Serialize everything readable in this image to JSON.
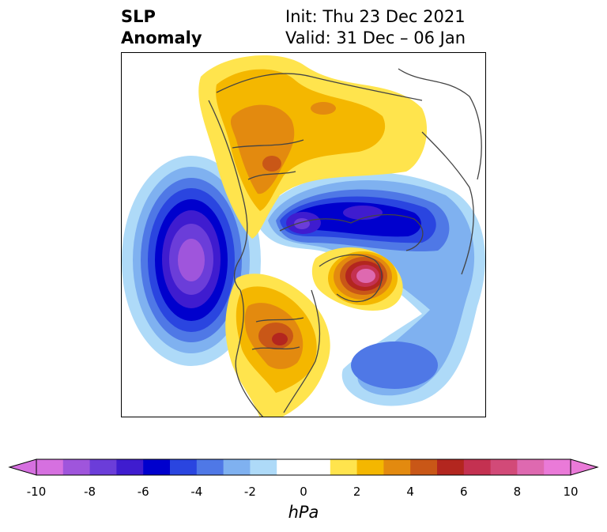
{
  "header": {
    "title_line1": "SLP",
    "title_line2": "Anomaly",
    "init_text": "Init: Thu 23 Dec 2021",
    "valid_text": "Valid: 31 Dec – 06 Jan"
  },
  "colorbar": {
    "unit_label": "hPa",
    "tick_labels": [
      "-10",
      "-8",
      "-6",
      "-4",
      "-2",
      "0",
      "2",
      "4",
      "6",
      "8",
      "10"
    ],
    "colors": [
      "#d670e0",
      "#9f55dc",
      "#6b3dd9",
      "#3f1ccf",
      "#0000cd",
      "#2a45e0",
      "#4f78e6",
      "#7fb1f0",
      "#aedaf8",
      "#ffffff",
      "#ffffff",
      "#ffe44d",
      "#f4b700",
      "#e38a0f",
      "#c95717",
      "#b3261f",
      "#c43151",
      "#d24a78",
      "#de69b0",
      "#ea7ad8"
    ]
  }
}
